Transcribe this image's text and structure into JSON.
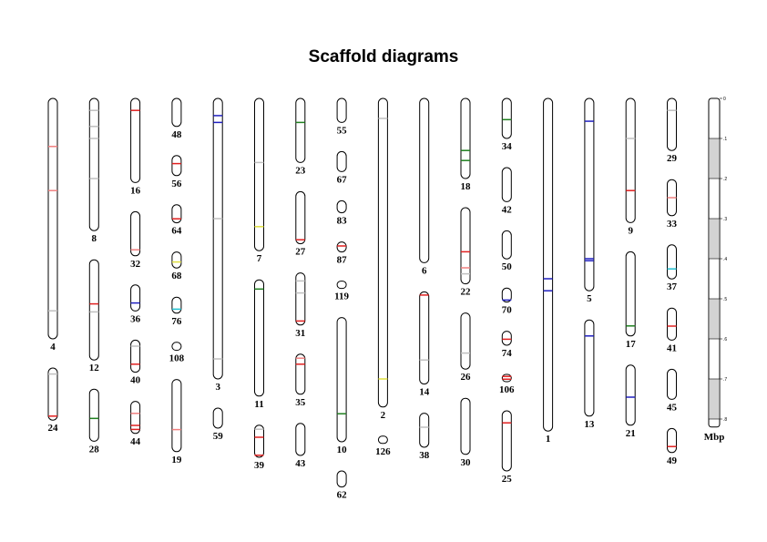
{
  "page": {
    "title": "Scaffold diagrams"
  },
  "scale": {
    "unit_label": "Mbp",
    "ticks": [
      "0",
      ".1",
      ".2",
      ".3",
      ".4",
      ".5",
      ".6",
      ".7",
      ".8"
    ]
  },
  "marker_colors": {
    "red": "#e02020",
    "pink": "#f08080",
    "green": "#208020",
    "blue": "#2020c0",
    "yellow": "#e0e040",
    "cyan": "#20c0d0",
    "grey": "#c0c0c0"
  },
  "columns": [
    {
      "scaffolds": [
        {
          "label": "4",
          "length": 0.6,
          "markers": [
            {
              "pos": 0.12,
              "color": "pink"
            },
            {
              "pos": 0.23,
              "color": "pink"
            },
            {
              "pos": 0.53,
              "color": "grey"
            }
          ]
        },
        {
          "label": "24",
          "length": 0.13,
          "markers": [
            {
              "pos": 0.015,
              "color": "grey"
            },
            {
              "pos": 0.12,
              "color": "red"
            }
          ]
        }
      ]
    },
    {
      "scaffolds": [
        {
          "label": "8",
          "length": 0.33,
          "markers": [
            {
              "pos": 0.03,
              "color": "grey"
            },
            {
              "pos": 0.07,
              "color": "grey"
            },
            {
              "pos": 0.1,
              "color": "grey"
            },
            {
              "pos": 0.2,
              "color": "grey"
            }
          ]
        },
        {
          "label": "12",
          "length": 0.25,
          "markers": [
            {
              "pos": 0.11,
              "color": "red"
            },
            {
              "pos": 0.13,
              "color": "grey"
            }
          ]
        },
        {
          "label": "28",
          "length": 0.13,
          "markers": [
            {
              "pos": 0.073,
              "color": "green"
            }
          ]
        }
      ]
    },
    {
      "scaffolds": [
        {
          "label": "16",
          "length": 0.21,
          "markers": [
            {
              "pos": 0.03,
              "color": "red"
            }
          ]
        },
        {
          "label": "32",
          "length": 0.11,
          "markers": [
            {
              "pos": 0.095,
              "color": "pink"
            }
          ]
        },
        {
          "label": "36",
          "length": 0.065,
          "markers": [
            {
              "pos": 0.045,
              "color": "blue"
            }
          ]
        },
        {
          "label": "40",
          "length": 0.08,
          "markers": [
            {
              "pos": 0.015,
              "color": "grey"
            },
            {
              "pos": 0.06,
              "color": "red"
            }
          ]
        },
        {
          "label": "44",
          "length": 0.08,
          "markers": [
            {
              "pos": 0.03,
              "color": "pink"
            },
            {
              "pos": 0.06,
              "color": "red"
            },
            {
              "pos": 0.07,
              "color": "red"
            }
          ]
        }
      ]
    },
    {
      "scaffolds": [
        {
          "label": "48",
          "length": 0.07,
          "markers": []
        },
        {
          "label": "56",
          "length": 0.05,
          "markers": [
            {
              "pos": 0.02,
              "color": "red"
            }
          ]
        },
        {
          "label": "64",
          "length": 0.045,
          "markers": [
            {
              "pos": 0.035,
              "color": "red"
            }
          ]
        },
        {
          "label": "68",
          "length": 0.04,
          "markers": [
            {
              "pos": 0.025,
              "color": "yellow"
            }
          ]
        },
        {
          "label": "76",
          "length": 0.04,
          "markers": [
            {
              "pos": 0.03,
              "color": "cyan"
            }
          ]
        },
        {
          "label": "108",
          "length": 0.02,
          "markers": []
        },
        {
          "label": "19",
          "length": 0.18,
          "markers": [
            {
              "pos": 0.125,
              "color": "pink"
            }
          ]
        }
      ]
    },
    {
      "scaffolds": [
        {
          "label": "3",
          "length": 0.7,
          "markers": [
            {
              "pos": 0.043,
              "color": "blue"
            },
            {
              "pos": 0.06,
              "color": "blue"
            },
            {
              "pos": 0.3,
              "color": "grey"
            },
            {
              "pos": 0.65,
              "color": "grey"
            }
          ]
        },
        {
          "label": "59",
          "length": 0.05,
          "markers": []
        }
      ]
    },
    {
      "scaffolds": [
        {
          "label": "7",
          "length": 0.38,
          "markers": [
            {
              "pos": 0.16,
              "color": "grey"
            },
            {
              "pos": 0.32,
              "color": "yellow"
            }
          ]
        },
        {
          "label": "11",
          "length": 0.29,
          "markers": [
            {
              "pos": 0.023,
              "color": "green"
            }
          ]
        },
        {
          "label": "39",
          "length": 0.08,
          "markers": [
            {
              "pos": 0.01,
              "color": "grey"
            },
            {
              "pos": 0.03,
              "color": "red"
            },
            {
              "pos": 0.075,
              "color": "red"
            }
          ]
        }
      ]
    },
    {
      "scaffolds": [
        {
          "label": "23",
          "length": 0.16,
          "markers": [
            {
              "pos": 0.06,
              "color": "green"
            }
          ]
        },
        {
          "label": "27",
          "length": 0.13,
          "markers": [
            {
              "pos": 0.12,
              "color": "red"
            }
          ]
        },
        {
          "label": "31",
          "length": 0.13,
          "markers": [
            {
              "pos": 0.02,
              "color": "grey"
            },
            {
              "pos": 0.05,
              "color": "grey"
            },
            {
              "pos": 0.12,
              "color": "red"
            }
          ]
        },
        {
          "label": "35",
          "length": 0.1,
          "markers": [
            {
              "pos": 0.01,
              "color": "pink"
            },
            {
              "pos": 0.025,
              "color": "red"
            }
          ]
        },
        {
          "label": "43",
          "length": 0.08,
          "markers": []
        }
      ]
    },
    {
      "scaffolds": [
        {
          "label": "55",
          "length": 0.06,
          "markers": []
        },
        {
          "label": "67",
          "length": 0.05,
          "markers": []
        },
        {
          "label": "83",
          "length": 0.03,
          "markers": []
        },
        {
          "label": "87",
          "length": 0.025,
          "markers": [
            {
              "pos": 0.01,
              "color": "red"
            }
          ]
        },
        {
          "label": "119",
          "length": 0.012,
          "markers": []
        },
        {
          "label": "10",
          "length": 0.31,
          "markers": [
            {
              "pos": 0.24,
              "color": "green"
            }
          ]
        },
        {
          "label": "62",
          "length": 0.04,
          "markers": []
        }
      ]
    },
    {
      "scaffolds": [
        {
          "label": "2",
          "length": 0.77,
          "markers": [
            {
              "pos": 0.05,
              "color": "grey"
            },
            {
              "pos": 0.7,
              "color": "yellow"
            }
          ]
        },
        {
          "label": "126",
          "length": 0.012,
          "markers": []
        }
      ]
    },
    {
      "scaffolds": [
        {
          "label": "6",
          "length": 0.41,
          "markers": []
        },
        {
          "label": "14",
          "length": 0.23,
          "markers": [
            {
              "pos": 0.008,
              "color": "red"
            },
            {
              "pos": 0.17,
              "color": "grey"
            }
          ]
        },
        {
          "label": "38",
          "length": 0.085,
          "markers": [
            {
              "pos": 0.035,
              "color": "grey"
            }
          ]
        }
      ]
    },
    {
      "scaffolds": [
        {
          "label": "18",
          "length": 0.2,
          "markers": [
            {
              "pos": 0.13,
              "color": "green"
            },
            {
              "pos": 0.155,
              "color": "green"
            }
          ]
        },
        {
          "label": "22",
          "length": 0.19,
          "markers": [
            {
              "pos": 0.11,
              "color": "red"
            },
            {
              "pos": 0.15,
              "color": "pink"
            },
            {
              "pos": 0.165,
              "color": "grey"
            }
          ]
        },
        {
          "label": "26",
          "length": 0.14,
          "markers": [
            {
              "pos": 0.1,
              "color": "grey"
            }
          ]
        },
        {
          "label": "30",
          "length": 0.14,
          "markers": []
        }
      ]
    },
    {
      "scaffolds": [
        {
          "label": "34",
          "length": 0.1,
          "markers": [
            {
              "pos": 0.053,
              "color": "green"
            }
          ]
        },
        {
          "label": "42",
          "length": 0.085,
          "markers": []
        },
        {
          "label": "50",
          "length": 0.07,
          "markers": []
        },
        {
          "label": "70",
          "length": 0.035,
          "markers": [
            {
              "pos": 0.03,
              "color": "blue"
            }
          ]
        },
        {
          "label": "74",
          "length": 0.035,
          "markers": [
            {
              "pos": 0.02,
              "color": "red"
            }
          ]
        },
        {
          "label": "106",
          "length": 0.018,
          "markers": [
            {
              "pos": 0.005,
              "color": "red"
            },
            {
              "pos": 0.012,
              "color": "red"
            }
          ]
        },
        {
          "label": "25",
          "length": 0.15,
          "markers": [
            {
              "pos": 0.03,
              "color": "red"
            }
          ]
        }
      ]
    },
    {
      "scaffolds": [
        {
          "label": "1",
          "length": 0.83,
          "markers": [
            {
              "pos": 0.45,
              "color": "blue"
            },
            {
              "pos": 0.48,
              "color": "blue"
            }
          ]
        }
      ]
    },
    {
      "scaffolds": [
        {
          "label": "5",
          "length": 0.48,
          "markers": [
            {
              "pos": 0.057,
              "color": "blue"
            },
            {
              "pos": 0.4,
              "color": "blue"
            },
            {
              "pos": 0.405,
              "color": "blue"
            }
          ]
        },
        {
          "label": "13",
          "length": 0.24,
          "markers": [
            {
              "pos": 0.04,
              "color": "blue"
            }
          ]
        }
      ]
    },
    {
      "scaffolds": [
        {
          "label": "9",
          "length": 0.31,
          "markers": [
            {
              "pos": 0.1,
              "color": "grey"
            },
            {
              "pos": 0.23,
              "color": "red"
            }
          ]
        },
        {
          "label": "17",
          "length": 0.21,
          "markers": [
            {
              "pos": 0.185,
              "color": "green"
            }
          ]
        },
        {
          "label": "21",
          "length": 0.15,
          "markers": [
            {
              "pos": 0.08,
              "color": "blue"
            }
          ]
        }
      ]
    },
    {
      "scaffolds": [
        {
          "label": "29",
          "length": 0.13,
          "markers": [
            {
              "pos": 0.03,
              "color": "grey"
            }
          ]
        },
        {
          "label": "33",
          "length": 0.09,
          "markers": [
            {
              "pos": 0.045,
              "color": "pink"
            }
          ]
        },
        {
          "label": "37",
          "length": 0.085,
          "markers": [
            {
              "pos": 0.06,
              "color": "cyan"
            }
          ]
        },
        {
          "label": "41",
          "length": 0.08,
          "markers": [
            {
              "pos": 0.045,
              "color": "red"
            }
          ]
        },
        {
          "label": "45",
          "length": 0.075,
          "markers": []
        },
        {
          "label": "49",
          "length": 0.06,
          "markers": [
            {
              "pos": 0.045,
              "color": "red"
            }
          ]
        }
      ]
    }
  ]
}
